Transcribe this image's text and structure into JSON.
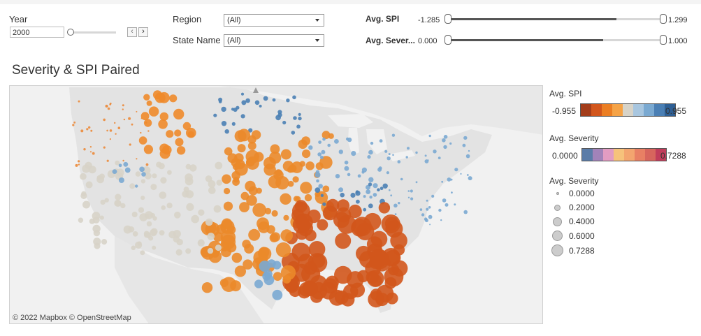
{
  "filters": {
    "year_label": "Year",
    "year_value": "2000",
    "year_fraction": 0.0,
    "prev_icon": "chevron-left-icon",
    "next_icon": "chevron-right-icon",
    "region_label": "Region",
    "region_value": "(All)",
    "state_label": "State Name",
    "state_value": "(All)",
    "spi_label": "Avg. SPI",
    "spi_min": "-1.285",
    "spi_max": "1.299",
    "spi_fill": [
      0.0,
      0.78
    ],
    "severity_label": "Avg. Sever...",
    "severity_min": "0.000",
    "severity_max": "1.000",
    "severity_fill": [
      0.0,
      0.72
    ]
  },
  "chart_title": "Severity & SPI Paired",
  "map": {
    "credit": "© 2022 Mapbox © OpenStreetMap",
    "land_color": "#e3e3e3",
    "water_color": "#f1f1f1"
  },
  "legend": {
    "spi_title": "Avg. SPI",
    "spi_min": "-0.955",
    "spi_max": "0.955",
    "spi_colors": [
      "#a33d1a",
      "#d2561c",
      "#eb7e23",
      "#f5a347",
      "#d7d3c8",
      "#a8c6df",
      "#7aa9d1",
      "#4a7fb4",
      "#2e5f94"
    ],
    "severity_title": "Avg. Severity",
    "severity_min": "0.0000",
    "severity_max": "0.7288",
    "severity_colors": [
      "#5b7ca8",
      "#a283b9",
      "#e29cc2",
      "#f6c27b",
      "#f3a56f",
      "#e88064",
      "#d7655d",
      "#c13d5b"
    ],
    "size_title": "Avg. Severity",
    "size_items": [
      "0.0000",
      "0.2000",
      "0.4000",
      "0.6000",
      "0.7288"
    ]
  }
}
